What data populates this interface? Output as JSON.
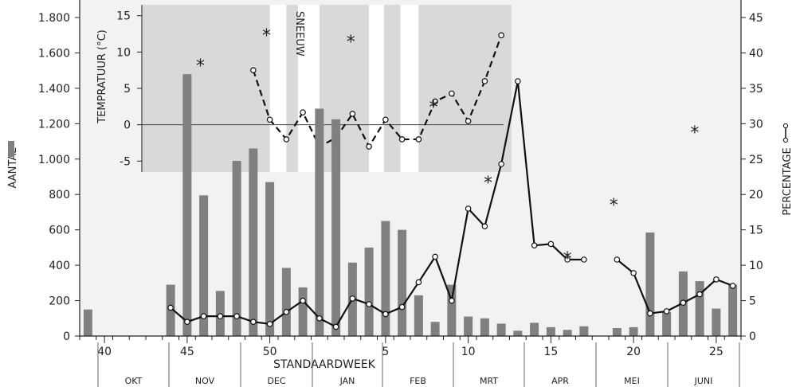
{
  "chart_data": {
    "type": "bar+line",
    "xlabel": "STANDAARDWEEK",
    "ylabel_left": "AANTAL",
    "ylabel_right": "PERCENTAGE",
    "left_ylim": [
      0,
      1800
    ],
    "left_yticks": [
      "0",
      "200",
      "400",
      "600",
      "800",
      "1.000",
      "1.200",
      "1.400",
      "1.600",
      "1.800"
    ],
    "right_ylim": [
      0,
      45
    ],
    "right_yticks": [
      "0",
      "5",
      "10",
      "15",
      "20",
      "25",
      "30",
      "35",
      "40",
      "45"
    ],
    "xticks": [
      {
        "week": 40,
        "label": "40"
      },
      {
        "week": 45,
        "label": "45"
      },
      {
        "week": 50,
        "label": "50"
      },
      {
        "week": 5,
        "label": "5"
      },
      {
        "week": 10,
        "label": "10"
      },
      {
        "week": 15,
        "label": "15"
      },
      {
        "week": 20,
        "label": "20"
      },
      {
        "week": 25,
        "label": "25"
      }
    ],
    "weeks": [
      39,
      40,
      41,
      42,
      43,
      44,
      45,
      46,
      47,
      48,
      49,
      50,
      51,
      52,
      1,
      2,
      3,
      4,
      5,
      6,
      7,
      8,
      9,
      10,
      11,
      12,
      13,
      14,
      15,
      16,
      17,
      18,
      19,
      20,
      21,
      22,
      23,
      24,
      25,
      26
    ],
    "months": [
      "OKT",
      "NOV",
      "DEC",
      "JAN",
      "FEB",
      "MRT",
      "APR",
      "MEI",
      "JUNI"
    ],
    "bars": {
      "name": "AANTAL",
      "values": [
        150,
        null,
        null,
        null,
        null,
        290,
        1480,
        795,
        255,
        990,
        1060,
        870,
        385,
        275,
        1285,
        1225,
        415,
        500,
        650,
        600,
        230,
        80,
        290,
        110,
        100,
        70,
        30,
        75,
        50,
        35,
        55,
        null,
        45,
        50,
        585,
        135,
        365,
        310,
        155,
        290
      ]
    },
    "percentage_line": {
      "name": "PERCENTAGE",
      "segments": [
        {
          "weeks": [
            44,
            45,
            46,
            47,
            48,
            49,
            50,
            51,
            52,
            1,
            2,
            3,
            4,
            5,
            6,
            7,
            8,
            9,
            10,
            11,
            12,
            13,
            14,
            15,
            16,
            17
          ],
          "values": [
            4,
            2,
            2.8,
            2.8,
            2.8,
            2,
            1.7,
            3.4,
            5,
            2.5,
            1.3,
            5.3,
            4.5,
            3.1,
            4.1,
            7.6,
            11.2,
            5,
            18,
            15.5,
            24.3,
            36,
            12.8,
            13,
            10.8,
            10.8
          ]
        },
        {
          "weeks": [
            19,
            20,
            21,
            22,
            23,
            24,
            25,
            26
          ],
          "values": [
            10.8,
            8.9,
            3.2,
            3.5,
            4.7,
            5.9,
            8,
            7.1
          ]
        }
      ]
    },
    "temperature_inset": {
      "ylabel": "TEMPRATUUR (°C)",
      "ylim": [
        -6.5,
        16.5
      ],
      "yticks": [
        "-5",
        "0",
        "5",
        "10",
        "15"
      ],
      "weeks": [
        49,
        50,
        51,
        52,
        1,
        2,
        3,
        4,
        5,
        6,
        7,
        8,
        9,
        10,
        11,
        12
      ],
      "values": [
        7.5,
        0.7,
        -2,
        1.7,
        -3,
        -1.8,
        1.5,
        -3,
        0.7,
        -2,
        -2,
        3.2,
        4.3,
        0.5,
        6,
        12.3
      ],
      "snow_label": "SNEEUW",
      "snow_spans": [
        [
          50.5,
          51.5
        ],
        [
          52.2,
          1.5
        ],
        [
          4.5,
          5.4
        ],
        [
          6.4,
          7.5
        ]
      ]
    },
    "significance_markers": [
      {
        "week": 45.8,
        "label": "*"
      },
      {
        "week": 49.8,
        "label": "*"
      },
      {
        "week": 2.9,
        "label": "*"
      },
      {
        "week": 7.9,
        "label": "*"
      },
      {
        "week": 11.2,
        "label": "*"
      },
      {
        "week": 16,
        "label": "*"
      },
      {
        "week": 18.8,
        "label": "*"
      },
      {
        "week": 23.7,
        "label": "*"
      }
    ]
  }
}
